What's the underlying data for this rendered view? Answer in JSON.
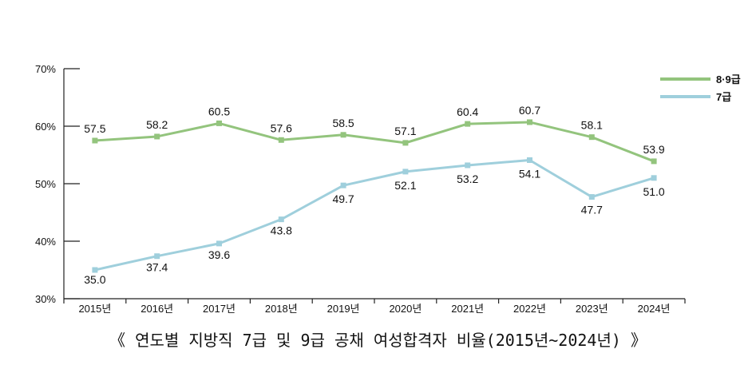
{
  "chart_data": {
    "type": "line",
    "title": "",
    "caption": "《 연도별 지방직 7급 및 9급 공채 여성합격자 비율(2015년~2024년) 》",
    "categories": [
      "2015년",
      "2016년",
      "2017년",
      "2018년",
      "2019년",
      "2020년",
      "2021년",
      "2022년",
      "2023년",
      "2024년"
    ],
    "y_ticks": [
      "30%",
      "40%",
      "50%",
      "60%",
      "70%"
    ],
    "ylim": [
      30,
      70
    ],
    "grid": false,
    "legend_position": "top-right",
    "series": [
      {
        "name": "8·9급",
        "color": "#93c47d",
        "values": [
          57.5,
          58.2,
          60.5,
          57.6,
          58.5,
          57.1,
          60.4,
          60.7,
          58.1,
          53.9
        ],
        "labels": [
          "57.5",
          "58.2",
          "60.5",
          "57.6",
          "58.5",
          "57.1",
          "60.4",
          "60.7",
          "58.1",
          "53.9"
        ]
      },
      {
        "name": "7급",
        "color": "#9fcfdc",
        "values": [
          35.0,
          37.4,
          39.6,
          43.8,
          49.7,
          52.1,
          53.2,
          54.1,
          47.7,
          51.0
        ],
        "labels": [
          "35.0",
          "37.4",
          "39.6",
          "43.8",
          "49.7",
          "52.1",
          "53.2",
          "54.1",
          "47.7",
          "51.0"
        ]
      }
    ]
  }
}
